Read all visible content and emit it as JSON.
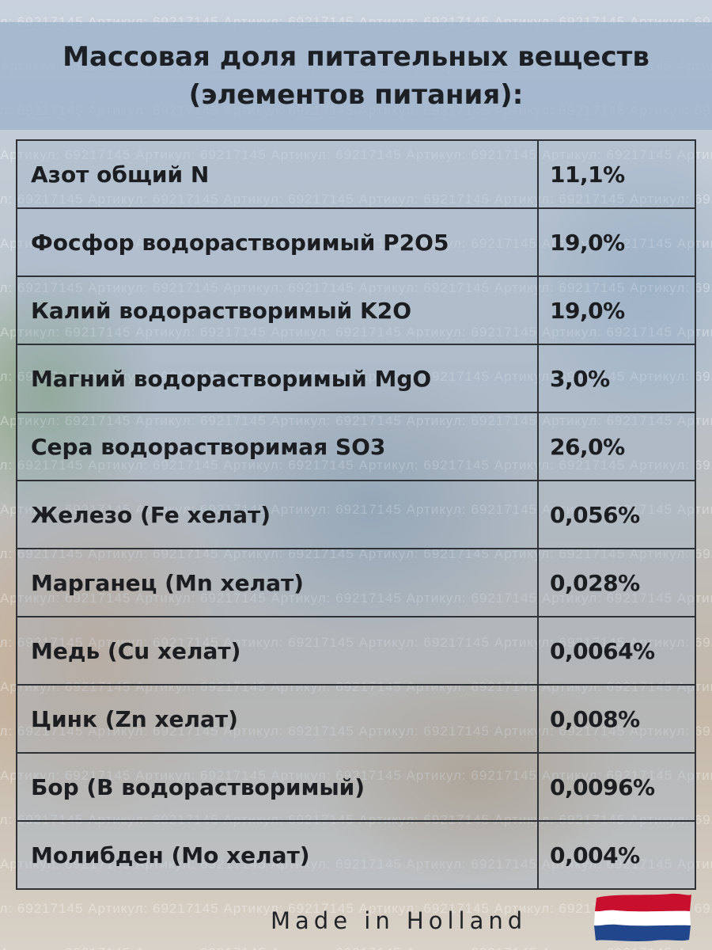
{
  "watermark_text": "Артикул: 69217145",
  "title": {
    "line1": "Массовая доля питательных веществ",
    "line2": "(элементов питания):"
  },
  "table": {
    "rows": [
      {
        "name": "Азот общий N",
        "value": "11,1%"
      },
      {
        "name": "Фосфор водорастворимый P2O5",
        "value": "19,0%"
      },
      {
        "name": "Калий водорастворимый K2O",
        "value": "19,0%"
      },
      {
        "name": "Магний водорастворимый MgO",
        "value": "3,0%"
      },
      {
        "name": "Сера водорастворимая SO3",
        "value": "26,0%"
      },
      {
        "name": "Железо (Fe хелат)",
        "value": "0,056%"
      },
      {
        "name": "Марганец (Mn хелат)",
        "value": "0,028%"
      },
      {
        "name": "Медь (Cu хелат)",
        "value": "0,0064%"
      },
      {
        "name": "Цинк (Zn хелат)",
        "value": "0,008%"
      },
      {
        "name": "Бор (B водорастворимый)",
        "value": "0,0096%"
      },
      {
        "name": "Молибден (Mo хелат)",
        "value": "0,004%"
      }
    ]
  },
  "footer": {
    "text": "Made in Holland",
    "flag_icon": "netherlands-flag-icon",
    "flag_colors": [
      "#c8102e",
      "#ffffff",
      "#21468b"
    ]
  }
}
